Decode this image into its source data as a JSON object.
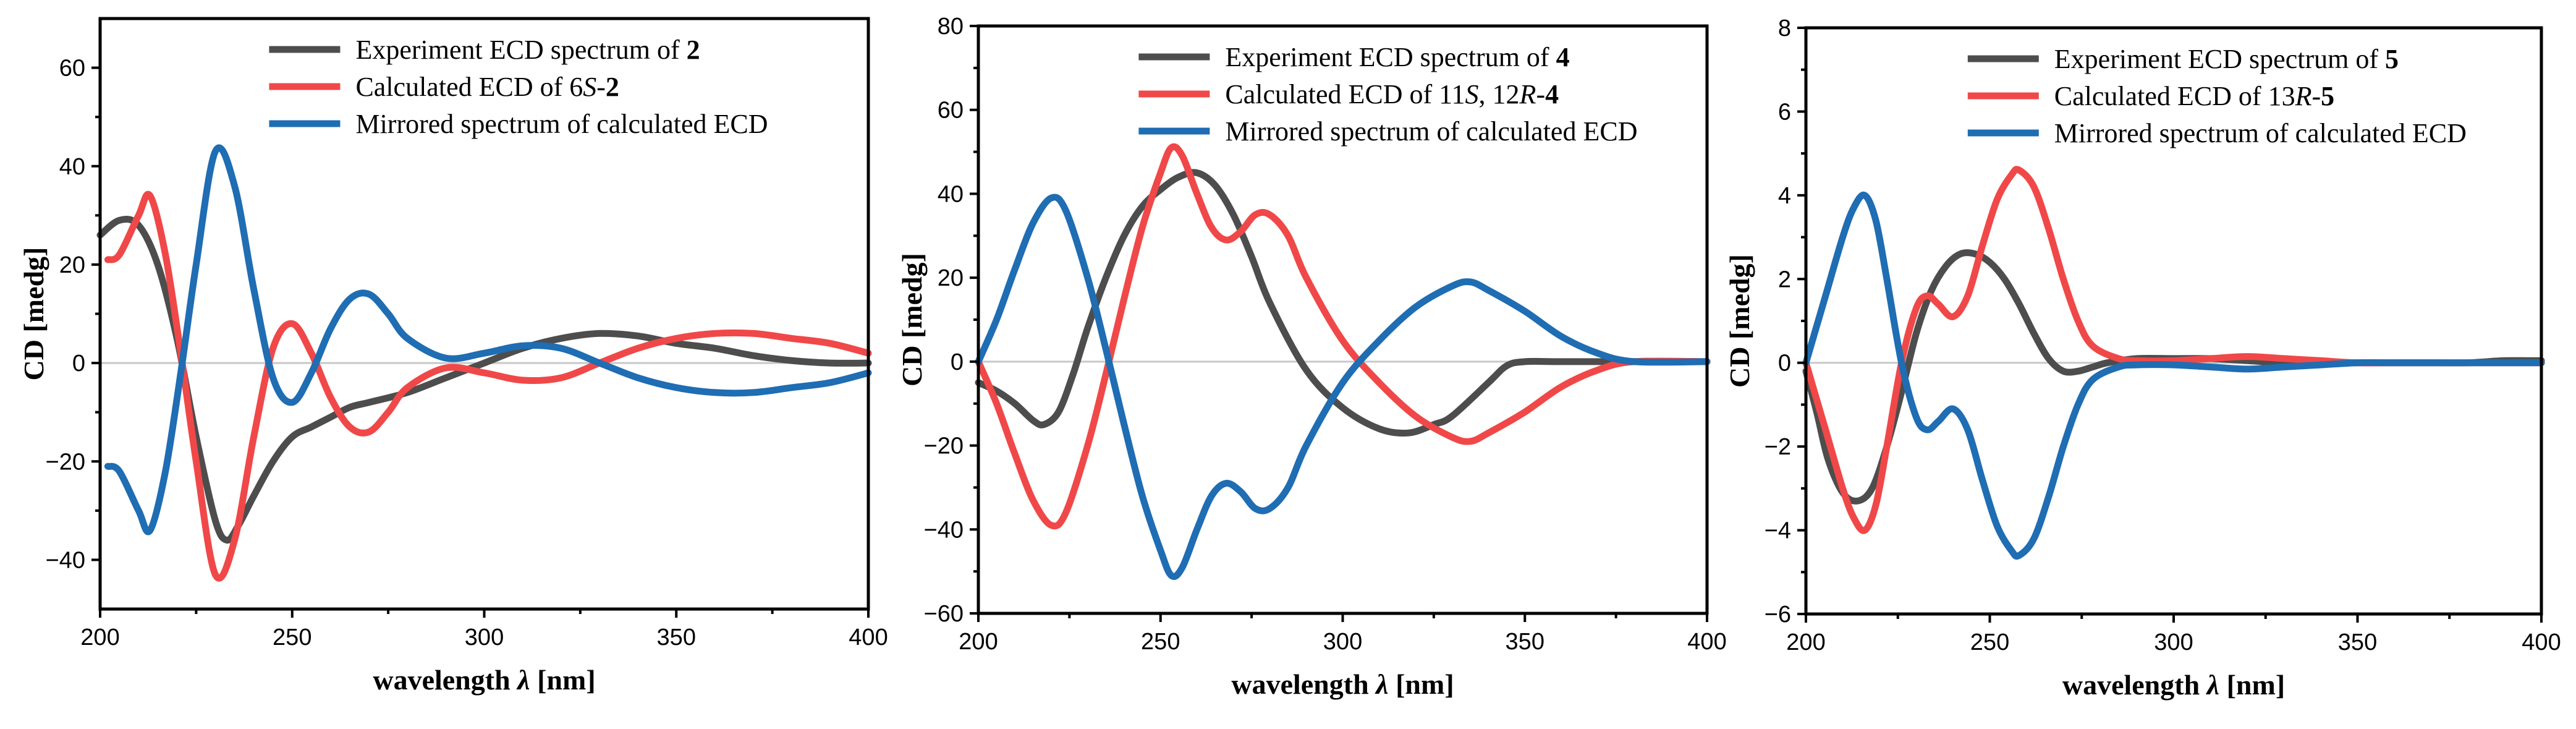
{
  "chart_data": [
    {
      "type": "line",
      "xlabel": "wavelength",
      "xlabel_symbol": "λ",
      "xlabel_unit": "[nm]",
      "ylabel": "CD [medg]",
      "xlim": [
        200,
        400
      ],
      "ylim": [
        -50,
        70
      ],
      "xticks": [
        200,
        250,
        300,
        350,
        400
      ],
      "yticks": [
        -40,
        -20,
        0,
        20,
        40,
        60
      ],
      "legend": [
        {
          "text": "Experiment ECD spectrum of ",
          "bold": "2",
          "color": "#4d4d4d"
        },
        {
          "text": "Calculated ECD of 6",
          "italic": "S",
          "rest": "-",
          "bold": "2",
          "color": "#f04848"
        },
        {
          "text": "Mirrored spectrum of  calculated ECD",
          "color": "#1f6db3"
        }
      ],
      "series": [
        {
          "name": "Experiment ECD spectrum of 2",
          "color": "#4d4d4d",
          "x": [
            200,
            205,
            210,
            215,
            220,
            225,
            230,
            233,
            236,
            240,
            245,
            250,
            255,
            260,
            265,
            270,
            280,
            290,
            300,
            310,
            320,
            330,
            340,
            350,
            360,
            370,
            380,
            390,
            400
          ],
          "y": [
            26,
            29,
            28,
            20,
            5,
            -15,
            -32,
            -36,
            -33,
            -27,
            -20,
            -15,
            -13,
            -11,
            -9,
            -8,
            -6,
            -3,
            0,
            3,
            5,
            6,
            5.5,
            4,
            3,
            1.5,
            0.5,
            0,
            0
          ]
        },
        {
          "name": "Calculated ECD of 6S-2",
          "color": "#f04848",
          "x": [
            202,
            205,
            210,
            213,
            217,
            221,
            225,
            230,
            235,
            240,
            245,
            250,
            255,
            260,
            265,
            270,
            275,
            280,
            290,
            300,
            310,
            320,
            330,
            340,
            350,
            360,
            370,
            380,
            390,
            400
          ],
          "y": [
            21,
            22,
            30,
            34,
            22,
            2,
            -20,
            -43,
            -36,
            -15,
            3,
            8,
            2,
            -7,
            -13,
            -14,
            -10,
            -5,
            -1,
            -2,
            -3.5,
            -3,
            0,
            3,
            5,
            6,
            6,
            5,
            4,
            2
          ]
        },
        {
          "name": "Mirrored spectrum of calculated ECD",
          "color": "#1f6db3",
          "x": [
            202,
            205,
            210,
            213,
            217,
            221,
            225,
            230,
            235,
            240,
            245,
            250,
            255,
            260,
            265,
            270,
            275,
            280,
            290,
            300,
            310,
            320,
            330,
            340,
            350,
            360,
            370,
            380,
            390,
            400
          ],
          "y": [
            -21,
            -22,
            -30,
            -34,
            -22,
            -2,
            20,
            43,
            36,
            15,
            -3,
            -8,
            -2,
            7,
            13,
            14,
            10,
            5,
            1,
            2,
            3.5,
            3,
            0,
            -3,
            -5,
            -6,
            -6,
            -5,
            -4,
            -2
          ]
        }
      ]
    },
    {
      "type": "line",
      "xlabel": "wavelength",
      "xlabel_symbol": "λ",
      "xlabel_unit": "[nm]",
      "ylabel": "CD [medg]",
      "xlim": [
        200,
        400
      ],
      "ylim": [
        -60,
        80
      ],
      "xticks": [
        200,
        250,
        300,
        350,
        400
      ],
      "yticks": [
        -60,
        -40,
        -20,
        0,
        20,
        40,
        60,
        80
      ],
      "legend": [
        {
          "text": "Experiment ECD spectrum of ",
          "bold": "4",
          "color": "#4d4d4d"
        },
        {
          "text": "Calculated ECD of 11",
          "italic": "S",
          "rest": ", 12",
          "italic2": "R",
          "rest2": "-",
          "bold": "4",
          "color": "#f04848"
        },
        {
          "text": "Mirrored spectrum of  calculated ECD",
          "color": "#1f6db3"
        }
      ],
      "series": [
        {
          "name": "Experiment ECD spectrum of 4",
          "color": "#4d4d4d",
          "x": [
            200,
            205,
            210,
            215,
            218,
            222,
            226,
            230,
            235,
            240,
            245,
            250,
            255,
            260,
            265,
            270,
            275,
            280,
            290,
            300,
            310,
            318,
            325,
            330,
            340,
            345,
            350,
            360,
            380,
            400
          ],
          "y": [
            -5,
            -7,
            -10,
            -14,
            -15,
            -12,
            -3,
            8,
            20,
            30,
            37,
            41,
            44,
            45,
            42,
            35,
            25,
            14,
            -2,
            -11,
            -16,
            -17,
            -15,
            -13,
            -5,
            -1,
            0,
            0,
            0,
            0
          ]
        },
        {
          "name": "Calculated ECD of 11S, 12R-4",
          "color": "#f04848",
          "x": [
            200,
            205,
            210,
            215,
            220,
            224,
            230,
            235,
            240,
            245,
            250,
            253,
            256,
            260,
            264,
            268,
            272,
            276,
            280,
            285,
            290,
            300,
            310,
            320,
            330,
            335,
            340,
            350,
            360,
            370,
            380,
            400
          ],
          "y": [
            0,
            -10,
            -22,
            -33,
            -39,
            -36,
            -20,
            -3,
            15,
            32,
            45,
            51,
            49,
            40,
            32,
            29,
            31,
            35,
            35,
            30,
            20,
            5,
            -5,
            -13,
            -18,
            -19,
            -17,
            -12,
            -6,
            -2,
            0,
            0
          ]
        },
        {
          "name": "Mirrored spectrum of calculated ECD",
          "color": "#1f6db3",
          "x": [
            200,
            205,
            210,
            215,
            220,
            224,
            230,
            235,
            240,
            245,
            250,
            253,
            256,
            260,
            264,
            268,
            272,
            276,
            280,
            285,
            290,
            300,
            310,
            320,
            330,
            335,
            340,
            350,
            360,
            370,
            380,
            400
          ],
          "y": [
            0,
            10,
            22,
            33,
            39,
            36,
            20,
            3,
            -15,
            -32,
            -45,
            -51,
            -49,
            -40,
            -32,
            -29,
            -31,
            -35,
            -35,
            -30,
            -20,
            -5,
            5,
            13,
            18,
            19,
            17,
            12,
            6,
            2,
            0,
            0
          ]
        }
      ]
    },
    {
      "type": "line",
      "xlabel": "wavelength",
      "xlabel_symbol": "λ",
      "xlabel_unit": "[nm]",
      "ylabel": "CD [medg]",
      "xlim": [
        200,
        400
      ],
      "ylim": [
        -6,
        8
      ],
      "xticks": [
        200,
        250,
        300,
        350,
        400
      ],
      "yticks": [
        -6,
        -4,
        -2,
        0,
        2,
        4,
        6,
        8
      ],
      "legend": [
        {
          "text": "Experiment ECD spectrum of ",
          "bold": "5",
          "color": "#4d4d4d"
        },
        {
          "text": "Calculated ECD of 13",
          "italic": "R",
          "rest": "-",
          "bold": "5",
          "color": "#f04848"
        },
        {
          "text": "Mirrored spectrum of  calculated ECD",
          "color": "#1f6db3"
        }
      ],
      "series": [
        {
          "name": "Experiment ECD spectrum of 5",
          "color": "#4d4d4d",
          "x": [
            200,
            203,
            206,
            210,
            214,
            218,
            222,
            226,
            230,
            234,
            238,
            242,
            246,
            250,
            254,
            258,
            262,
            266,
            270,
            274,
            278,
            282,
            290,
            300,
            310,
            320,
            330,
            340,
            350,
            360,
            370,
            380,
            390,
            400
          ],
          "y": [
            -0.2,
            -1.2,
            -2.3,
            -3.1,
            -3.3,
            -3.0,
            -2.0,
            -0.7,
            0.7,
            1.7,
            2.3,
            2.6,
            2.6,
            2.4,
            2.0,
            1.4,
            0.7,
            0.1,
            -0.2,
            -0.2,
            -0.1,
            0,
            0.1,
            0.1,
            0.1,
            0.05,
            0,
            0,
            0,
            0,
            0,
            0,
            0.05,
            0.05
          ]
        },
        {
          "name": "Calculated ECD of 13R-5",
          "color": "#f04848",
          "x": [
            200,
            205,
            210,
            213,
            216,
            219,
            222,
            226,
            230,
            233,
            236,
            240,
            244,
            248,
            252,
            256,
            258,
            262,
            266,
            270,
            274,
            278,
            285,
            290,
            300,
            310,
            320,
            330,
            340,
            350,
            360,
            370,
            380,
            390,
            400
          ],
          "y": [
            0,
            -1.5,
            -3,
            -3.7,
            -4,
            -3.4,
            -2,
            0,
            1.3,
            1.6,
            1.4,
            1.1,
            1.6,
            2.8,
            3.9,
            4.5,
            4.6,
            4.2,
            3.2,
            2,
            1,
            0.4,
            0.1,
            0.05,
            0.05,
            0.1,
            0.15,
            0.1,
            0.05,
            0,
            0,
            0,
            0,
            0,
            0
          ]
        },
        {
          "name": "Mirrored spectrum of calculated ECD",
          "color": "#1f6db3",
          "x": [
            200,
            205,
            210,
            213,
            216,
            219,
            222,
            226,
            230,
            233,
            236,
            240,
            244,
            248,
            252,
            256,
            258,
            262,
            266,
            270,
            274,
            278,
            285,
            290,
            300,
            310,
            320,
            330,
            340,
            350,
            360,
            370,
            380,
            390,
            400
          ],
          "y": [
            0,
            1.5,
            3,
            3.7,
            4,
            3.4,
            2,
            0,
            -1.3,
            -1.6,
            -1.4,
            -1.1,
            -1.6,
            -2.8,
            -3.9,
            -4.5,
            -4.6,
            -4.2,
            -3.2,
            -2,
            -1,
            -0.4,
            -0.1,
            -0.05,
            -0.05,
            -0.1,
            -0.15,
            -0.1,
            -0.05,
            0,
            0,
            0,
            0,
            0,
            0
          ]
        }
      ]
    }
  ]
}
